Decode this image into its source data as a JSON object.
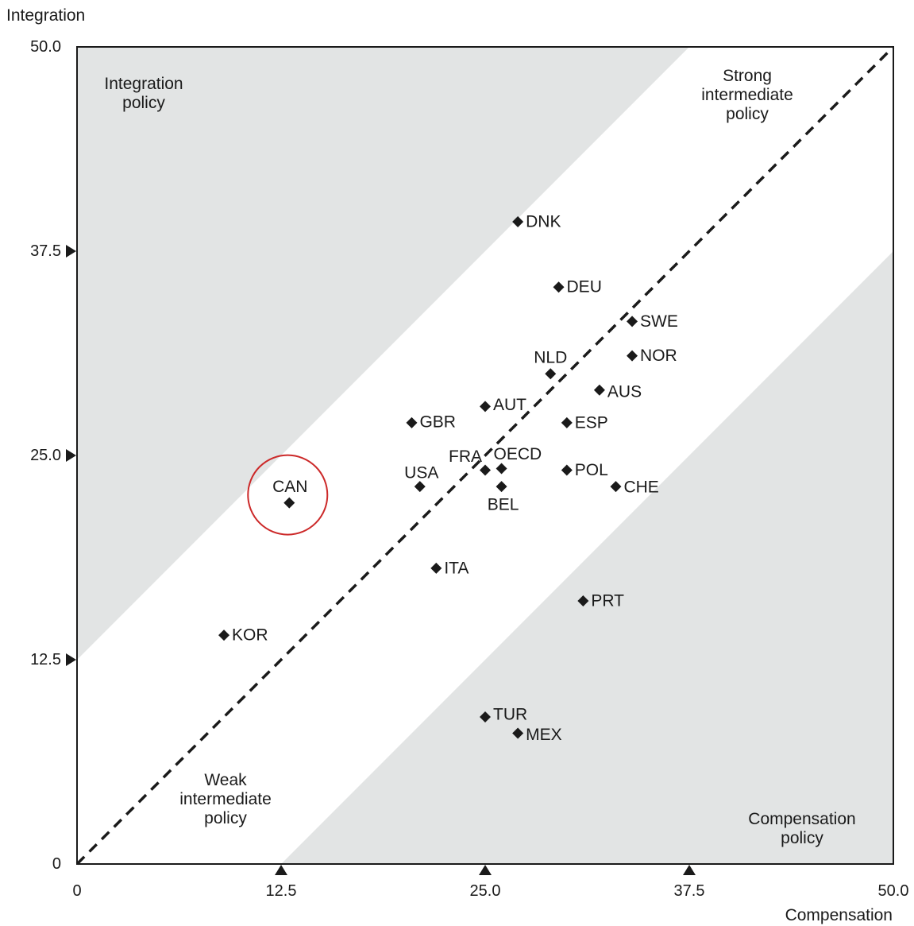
{
  "chart_data": {
    "type": "scatter",
    "xlabel": "Compensation",
    "ylabel": "Integration",
    "xlim": [
      0,
      50
    ],
    "ylim": [
      0,
      50
    ],
    "x_ticks": [
      "0",
      "12.5",
      "25.0",
      "37.5",
      "50.0"
    ],
    "y_ticks": [
      "0",
      "12.5",
      "25.0",
      "37.5",
      "50.0"
    ],
    "regions": {
      "integration": [
        "Integration",
        "policy"
      ],
      "strong": [
        "Strong",
        "intermediate",
        "policy"
      ],
      "weak": [
        "Weak",
        "intermediate",
        "policy"
      ],
      "compensation": [
        "Compensation",
        "policy"
      ]
    },
    "region_band_offset": 12.5,
    "diagonal": "dashed",
    "highlight": "CAN",
    "colors": {
      "shade": "#e2e4e4",
      "marker": "#1a1a1a",
      "highlight_circle": "#cc2929"
    },
    "points": [
      {
        "label": "DNK",
        "x": 27.0,
        "y": 39.3
      },
      {
        "label": "DEU",
        "x": 29.5,
        "y": 35.3
      },
      {
        "label": "SWE",
        "x": 34.0,
        "y": 33.2
      },
      {
        "label": "NOR",
        "x": 34.0,
        "y": 31.1
      },
      {
        "label": "NLD",
        "x": 29.0,
        "y": 30.0
      },
      {
        "label": "AUS",
        "x": 32.0,
        "y": 29.0
      },
      {
        "label": "AUT",
        "x": 25.0,
        "y": 28.0
      },
      {
        "label": "GBR",
        "x": 20.5,
        "y": 27.0
      },
      {
        "label": "ESP",
        "x": 30.0,
        "y": 27.0
      },
      {
        "label": "FRA",
        "x": 25.0,
        "y": 24.1
      },
      {
        "label": "OECD",
        "x": 26.0,
        "y": 24.2
      },
      {
        "label": "POL",
        "x": 30.0,
        "y": 24.1
      },
      {
        "label": "USA",
        "x": 21.0,
        "y": 23.1
      },
      {
        "label": "BEL",
        "x": 26.0,
        "y": 23.1
      },
      {
        "label": "CHE",
        "x": 33.0,
        "y": 23.1
      },
      {
        "label": "CAN",
        "x": 13.0,
        "y": 22.1
      },
      {
        "label": "ITA",
        "x": 22.0,
        "y": 18.1
      },
      {
        "label": "PRT",
        "x": 31.0,
        "y": 16.1
      },
      {
        "label": "KOR",
        "x": 9.0,
        "y": 14.0
      },
      {
        "label": "TUR",
        "x": 25.0,
        "y": 9.0
      },
      {
        "label": "MEX",
        "x": 27.0,
        "y": 8.0
      }
    ]
  }
}
